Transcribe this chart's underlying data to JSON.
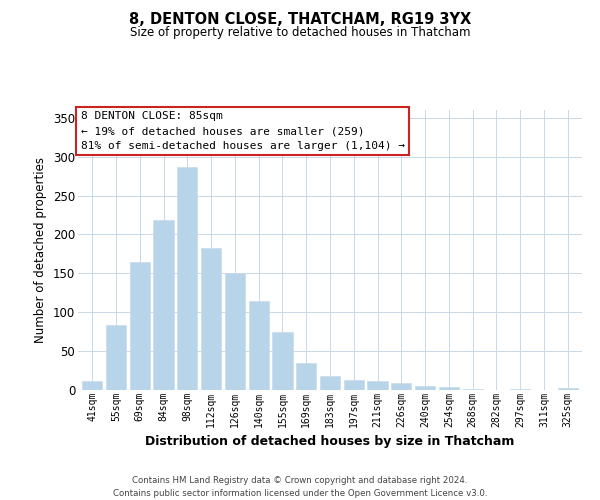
{
  "title": "8, DENTON CLOSE, THATCHAM, RG19 3YX",
  "subtitle": "Size of property relative to detached houses in Thatcham",
  "xlabel": "Distribution of detached houses by size in Thatcham",
  "ylabel": "Number of detached properties",
  "categories": [
    "41sqm",
    "55sqm",
    "69sqm",
    "84sqm",
    "98sqm",
    "112sqm",
    "126sqm",
    "140sqm",
    "155sqm",
    "169sqm",
    "183sqm",
    "197sqm",
    "211sqm",
    "226sqm",
    "240sqm",
    "254sqm",
    "268sqm",
    "282sqm",
    "297sqm",
    "311sqm",
    "325sqm"
  ],
  "values": [
    11,
    84,
    165,
    218,
    287,
    182,
    150,
    114,
    75,
    35,
    18,
    13,
    12,
    9,
    5,
    4,
    1,
    0,
    1,
    0,
    2
  ],
  "bar_color": "#b8d4e8",
  "bar_edge_color": "#c8dcea",
  "background_color": "#ffffff",
  "grid_color": "#c8d8e8",
  "annotation_line1": "8 DENTON CLOSE: 85sqm",
  "annotation_line2": "← 19% of detached houses are smaller (259)",
  "annotation_line3": "81% of semi-detached houses are larger (1,104) →",
  "annotation_box_color": "#ffffff",
  "annotation_box_edge_color": "#cc2222",
  "footer_line1": "Contains HM Land Registry data © Crown copyright and database right 2024.",
  "footer_line2": "Contains public sector information licensed under the Open Government Licence v3.0.",
  "ylim": [
    0,
    360
  ],
  "yticks": [
    0,
    50,
    100,
    150,
    200,
    250,
    300,
    350
  ]
}
